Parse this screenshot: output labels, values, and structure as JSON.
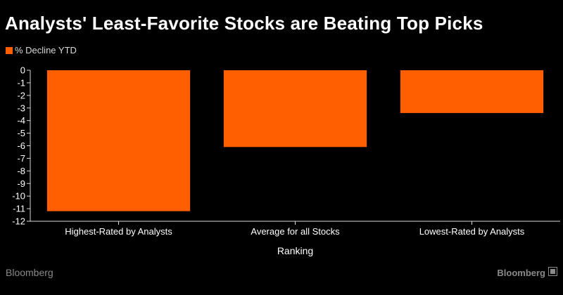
{
  "chart_data": {
    "type": "bar",
    "title": "Analysts' Least-Favorite Stocks are Beating Top Picks",
    "categories": [
      "Highest-Rated by Analysts",
      "Average for all Stocks",
      "Lowest-Rated by Analysts"
    ],
    "series": [
      {
        "name": "% Decline YTD",
        "values": [
          -11.2,
          -6.1,
          -3.4
        ]
      }
    ],
    "xlabel": "Ranking",
    "ylabel": "",
    "ylim": [
      -12,
      0
    ],
    "yticks": [
      0,
      -1,
      -2,
      -3,
      -4,
      -5,
      -6,
      -7,
      -8,
      -9,
      -10,
      -11,
      -12
    ],
    "legend": "top-left",
    "grid": false
  },
  "colors": {
    "bar": "#ff5f00",
    "background": "#000000",
    "text": "#ffffff",
    "axis": "#d9d9d9",
    "footer": "#8a8a8a"
  },
  "footer": {
    "source_left": "Bloomberg",
    "source_right": "Bloomberg",
    "logo_icon": "bloomberg-square-icon"
  }
}
